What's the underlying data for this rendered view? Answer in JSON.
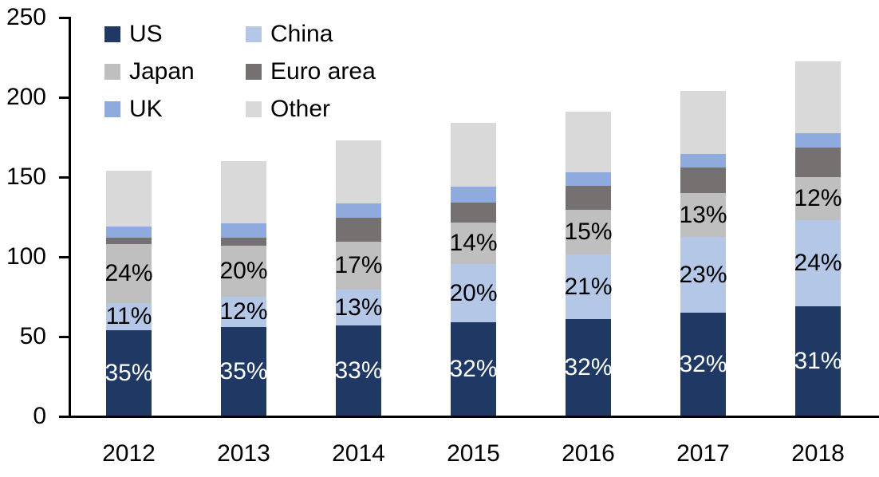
{
  "chart_data": {
    "type": "bar",
    "stacked": true,
    "title": "",
    "xlabel": "",
    "ylabel": "",
    "categories": [
      "2012",
      "2013",
      "2014",
      "2015",
      "2016",
      "2017",
      "2018"
    ],
    "series": [
      {
        "name": "US",
        "color": "#1F3864",
        "values": [
          54,
          56,
          57,
          59,
          61,
          65,
          69
        ],
        "labels": [
          "35%",
          "35%",
          "33%",
          "32%",
          "32%",
          "32%",
          "31%"
        ],
        "label_color": "#FFFFFF"
      },
      {
        "name": "China",
        "color": "#B4C7E7",
        "values": [
          17,
          19,
          22.5,
          36.5,
          40.5,
          47.5,
          54
        ],
        "labels": [
          "11%",
          "12%",
          "13%",
          "20%",
          "21%",
          "23%",
          "24%"
        ],
        "label_color": "#000000"
      },
      {
        "name": "Japan",
        "color": "#BFBFBF",
        "values": [
          37,
          32,
          30,
          26,
          28,
          27.5,
          27
        ],
        "labels": [
          "24%",
          "20%",
          "17%",
          "14%",
          "15%",
          "13%",
          "12%"
        ],
        "label_color": "#000000"
      },
      {
        "name": "Euro area",
        "color": "#767171",
        "values": [
          4,
          5,
          15,
          12.5,
          15,
          16,
          18.5
        ],
        "labels": null,
        "label_color": "#000000"
      },
      {
        "name": "UK",
        "color": "#8FAADC",
        "values": [
          7,
          9,
          9,
          10,
          8.5,
          8.5,
          9
        ],
        "labels": null,
        "label_color": "#000000"
      },
      {
        "name": "Other",
        "color": "#D9D9D9",
        "values": [
          35,
          39,
          39.5,
          40,
          38,
          39.5,
          45
        ],
        "labels": null,
        "label_color": "#000000"
      }
    ],
    "totals": [
      154,
      160,
      173,
      184,
      191,
      204,
      222.5
    ],
    "ylim": [
      0,
      250
    ],
    "yticks": [
      0,
      50,
      100,
      150,
      200,
      250
    ],
    "grid": false,
    "axis_color": "#000000",
    "legend_position": "top-left",
    "legend": [
      {
        "label": "US",
        "color": "#1F3864"
      },
      {
        "label": "China",
        "color": "#B4C7E7"
      },
      {
        "label": "Japan",
        "color": "#BFBFBF"
      },
      {
        "label": "Euro area",
        "color": "#767171"
      },
      {
        "label": "UK",
        "color": "#8FAADC"
      },
      {
        "label": "Other",
        "color": "#D9D9D9"
      }
    ]
  }
}
